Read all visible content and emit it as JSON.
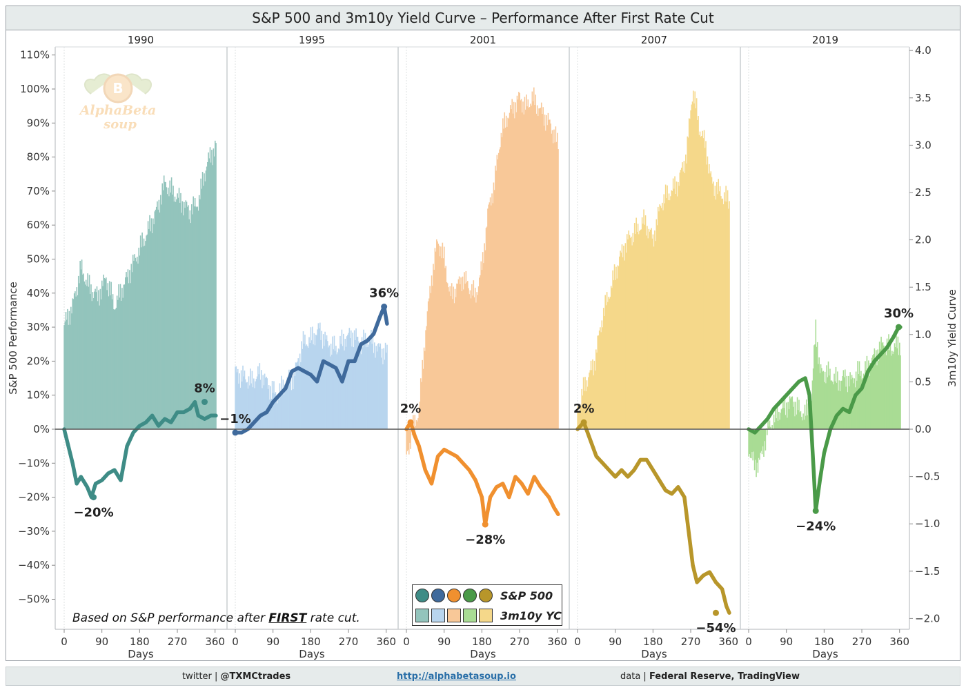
{
  "title": "S&P 500 and 3m10y Yield Curve – Performance After First Rate Cut",
  "footer": {
    "twitter_prefix": "twitter |",
    "twitter_handle": "@TXMCtrades",
    "url": "http://alphabetasoup.io",
    "data_prefix": "data |",
    "data_source": "Federal Reserve, TradingView"
  },
  "note": {
    "before": "Based on S&P performance after ",
    "emph": "FIRST",
    "after": " rate cut."
  },
  "legend": {
    "sp_label": "S&P 500",
    "yc_label": "3m10y YC"
  },
  "logo_text": "AlphaBeta soup",
  "chart_data": {
    "type": "line",
    "left_axis": {
      "label": "S&P 500 Performance",
      "ticks": [
        "110%",
        "100%",
        "90%",
        "80%",
        "70%",
        "60%",
        "50%",
        "40%",
        "30%",
        "20%",
        "10%",
        "0%",
        "−10%",
        "−20%",
        "−30%",
        "−40%",
        "−50%"
      ],
      "range": [
        -0.59,
        1.115
      ]
    },
    "right_axis": {
      "label": "3m10y Yield Curve",
      "ticks": [
        "4.0",
        "3.5",
        "3.0",
        "2.5",
        "2.0",
        "1.5",
        "1.0",
        "0.5",
        "0.0",
        "−0.5",
        "−1.0",
        "−1.5",
        "−2.0"
      ],
      "range": [
        -2.1,
        3.95
      ]
    },
    "x_axis": {
      "label": "Days",
      "ticks": [
        "0",
        "90",
        "180",
        "270",
        "360"
      ],
      "range": [
        0,
        372
      ]
    },
    "grid": false,
    "panels": [
      {
        "year": "1990",
        "color": "#3e8c86",
        "bar_color": "#93c4bc",
        "sp_points": [
          [
            0,
            0
          ],
          [
            10,
            -0.05
          ],
          [
            20,
            -0.1
          ],
          [
            30,
            -0.16
          ],
          [
            40,
            -0.14
          ],
          [
            55,
            -0.17
          ],
          [
            65,
            -0.2
          ],
          [
            75,
            -0.16
          ],
          [
            90,
            -0.15
          ],
          [
            105,
            -0.13
          ],
          [
            120,
            -0.12
          ],
          [
            135,
            -0.15
          ],
          [
            150,
            -0.05
          ],
          [
            165,
            -0.01
          ],
          [
            180,
            0.01
          ],
          [
            195,
            0.02
          ],
          [
            210,
            0.04
          ],
          [
            225,
            0.01
          ],
          [
            240,
            0.03
          ],
          [
            255,
            0.02
          ],
          [
            270,
            0.05
          ],
          [
            285,
            0.05
          ],
          [
            300,
            0.06
          ],
          [
            312,
            0.08
          ],
          [
            320,
            0.04
          ],
          [
            335,
            0.03
          ],
          [
            350,
            0.04
          ],
          [
            362,
            0.04
          ]
        ],
        "yc_points": [
          [
            0,
            1.1
          ],
          [
            20,
            1.3
          ],
          [
            40,
            1.7
          ],
          [
            60,
            1.5
          ],
          [
            80,
            1.4
          ],
          [
            100,
            1.6
          ],
          [
            120,
            1.3
          ],
          [
            140,
            1.5
          ],
          [
            160,
            1.7
          ],
          [
            180,
            1.9
          ],
          [
            200,
            2.1
          ],
          [
            220,
            2.3
          ],
          [
            240,
            2.6
          ],
          [
            260,
            2.5
          ],
          [
            280,
            2.4
          ],
          [
            300,
            2.3
          ],
          [
            320,
            2.4
          ],
          [
            340,
            2.8
          ],
          [
            362,
            3.0
          ]
        ],
        "labels": [
          {
            "text": "−20%",
            "day": 70,
            "value": -0.2,
            "pos": "below"
          },
          {
            "text": "8%",
            "day": 335,
            "value": 0.08,
            "pos": "above"
          }
        ]
      },
      {
        "year": "1995",
        "color": "#3f6a9c",
        "bar_color": "#b8d5ee",
        "sp_points": [
          [
            0,
            -0.01
          ],
          [
            15,
            -0.01
          ],
          [
            30,
            0.0
          ],
          [
            45,
            0.02
          ],
          [
            60,
            0.04
          ],
          [
            75,
            0.05
          ],
          [
            90,
            0.08
          ],
          [
            105,
            0.1
          ],
          [
            120,
            0.12
          ],
          [
            135,
            0.17
          ],
          [
            150,
            0.18
          ],
          [
            165,
            0.17
          ],
          [
            180,
            0.16
          ],
          [
            195,
            0.14
          ],
          [
            210,
            0.2
          ],
          [
            225,
            0.19
          ],
          [
            240,
            0.18
          ],
          [
            255,
            0.14
          ],
          [
            270,
            0.2
          ],
          [
            285,
            0.2
          ],
          [
            300,
            0.25
          ],
          [
            315,
            0.26
          ],
          [
            330,
            0.28
          ],
          [
            345,
            0.33
          ],
          [
            355,
            0.36
          ],
          [
            362,
            0.31
          ]
        ],
        "yc_points": [
          [
            0,
            0.6
          ],
          [
            20,
            0.55
          ],
          [
            40,
            0.5
          ],
          [
            60,
            0.6
          ],
          [
            80,
            0.45
          ],
          [
            100,
            0.35
          ],
          [
            120,
            0.5
          ],
          [
            140,
            0.55
          ],
          [
            160,
            0.9
          ],
          [
            180,
            0.95
          ],
          [
            200,
            1.05
          ],
          [
            220,
            0.9
          ],
          [
            240,
            0.85
          ],
          [
            260,
            0.95
          ],
          [
            280,
            1.0
          ],
          [
            300,
            0.9
          ],
          [
            320,
            0.95
          ],
          [
            340,
            0.85
          ],
          [
            362,
            0.8
          ]
        ],
        "labels": [
          {
            "text": "−1%",
            "day": 0,
            "value": -0.01,
            "pos": "above"
          },
          {
            "text": "36%",
            "day": 355,
            "value": 0.36,
            "pos": "above"
          }
        ]
      },
      {
        "year": "2001",
        "color": "#f0902f",
        "bar_color": "#f8c898",
        "sp_points": [
          [
            0,
            0.0
          ],
          [
            10,
            0.02
          ],
          [
            20,
            -0.02
          ],
          [
            30,
            -0.05
          ],
          [
            45,
            -0.12
          ],
          [
            60,
            -0.16
          ],
          [
            75,
            -0.08
          ],
          [
            90,
            -0.06
          ],
          [
            105,
            -0.07
          ],
          [
            120,
            -0.08
          ],
          [
            135,
            -0.1
          ],
          [
            150,
            -0.12
          ],
          [
            165,
            -0.15
          ],
          [
            180,
            -0.2
          ],
          [
            188,
            -0.28
          ],
          [
            200,
            -0.2
          ],
          [
            215,
            -0.17
          ],
          [
            230,
            -0.16
          ],
          [
            245,
            -0.2
          ],
          [
            260,
            -0.14
          ],
          [
            275,
            -0.16
          ],
          [
            290,
            -0.19
          ],
          [
            305,
            -0.14
          ],
          [
            320,
            -0.17
          ],
          [
            340,
            -0.2
          ],
          [
            352,
            -0.23
          ],
          [
            362,
            -0.25
          ]
        ],
        "yc_points": [
          [
            0,
            -0.3
          ],
          [
            15,
            0.0
          ],
          [
            30,
            0.2
          ],
          [
            45,
            1.0
          ],
          [
            60,
            1.6
          ],
          [
            75,
            2.0
          ],
          [
            90,
            1.8
          ],
          [
            105,
            1.4
          ],
          [
            120,
            1.5
          ],
          [
            135,
            1.6
          ],
          [
            150,
            1.5
          ],
          [
            165,
            1.4
          ],
          [
            180,
            1.7
          ],
          [
            195,
            2.3
          ],
          [
            210,
            2.6
          ],
          [
            225,
            3.1
          ],
          [
            240,
            3.3
          ],
          [
            255,
            3.4
          ],
          [
            270,
            3.5
          ],
          [
            285,
            3.4
          ],
          [
            300,
            3.5
          ],
          [
            315,
            3.4
          ],
          [
            330,
            3.3
          ],
          [
            345,
            3.2
          ],
          [
            362,
            3.0
          ]
        ],
        "labels": [
          {
            "text": "2%",
            "day": 10,
            "value": 0.02,
            "pos": "above"
          },
          {
            "text": "−28%",
            "day": 188,
            "value": -0.28,
            "pos": "below"
          }
        ]
      },
      {
        "year": "2007",
        "color": "#b8962a",
        "bar_color": "#f5d88a",
        "sp_points": [
          [
            0,
            0.0
          ],
          [
            15,
            0.02
          ],
          [
            30,
            -0.03
          ],
          [
            45,
            -0.08
          ],
          [
            60,
            -0.1
          ],
          [
            75,
            -0.12
          ],
          [
            90,
            -0.14
          ],
          [
            105,
            -0.12
          ],
          [
            120,
            -0.14
          ],
          [
            135,
            -0.12
          ],
          [
            150,
            -0.09
          ],
          [
            165,
            -0.09
          ],
          [
            180,
            -0.12
          ],
          [
            195,
            -0.15
          ],
          [
            210,
            -0.18
          ],
          [
            225,
            -0.19
          ],
          [
            240,
            -0.17
          ],
          [
            255,
            -0.2
          ],
          [
            265,
            -0.3
          ],
          [
            275,
            -0.4
          ],
          [
            285,
            -0.45
          ],
          [
            300,
            -0.43
          ],
          [
            315,
            -0.42
          ],
          [
            330,
            -0.45
          ],
          [
            345,
            -0.47
          ],
          [
            355,
            -0.52
          ],
          [
            362,
            -0.54
          ]
        ],
        "yc_points": [
          [
            0,
            0.2
          ],
          [
            20,
            0.5
          ],
          [
            40,
            0.7
          ],
          [
            60,
            1.2
          ],
          [
            80,
            1.5
          ],
          [
            100,
            1.8
          ],
          [
            120,
            2.0
          ],
          [
            140,
            2.1
          ],
          [
            160,
            2.2
          ],
          [
            180,
            2.0
          ],
          [
            200,
            2.4
          ],
          [
            220,
            2.5
          ],
          [
            240,
            2.6
          ],
          [
            260,
            2.9
          ],
          [
            275,
            3.6
          ],
          [
            290,
            3.2
          ],
          [
            305,
            3.0
          ],
          [
            320,
            2.6
          ],
          [
            340,
            2.5
          ],
          [
            362,
            2.4
          ]
        ],
        "labels": [
          {
            "text": "2%",
            "day": 15,
            "value": 0.02,
            "pos": "above"
          },
          {
            "text": "−54%",
            "day": 330,
            "value": -0.54,
            "pos": "below"
          }
        ]
      },
      {
        "year": "2019",
        "color": "#4a9a48",
        "bar_color": "#a9dc94",
        "sp_points": [
          [
            0,
            0.0
          ],
          [
            15,
            -0.01
          ],
          [
            30,
            0.01
          ],
          [
            45,
            0.03
          ],
          [
            60,
            0.06
          ],
          [
            75,
            0.08
          ],
          [
            90,
            0.1
          ],
          [
            105,
            0.12
          ],
          [
            120,
            0.14
          ],
          [
            135,
            0.15
          ],
          [
            145,
            0.1
          ],
          [
            155,
            -0.12
          ],
          [
            160,
            -0.24
          ],
          [
            170,
            -0.15
          ],
          [
            180,
            -0.07
          ],
          [
            195,
            0.0
          ],
          [
            210,
            0.04
          ],
          [
            225,
            0.06
          ],
          [
            240,
            0.05
          ],
          [
            255,
            0.1
          ],
          [
            270,
            0.12
          ],
          [
            285,
            0.17
          ],
          [
            300,
            0.2
          ],
          [
            315,
            0.22
          ],
          [
            330,
            0.24
          ],
          [
            345,
            0.27
          ],
          [
            358,
            0.3
          ],
          [
            362,
            0.3
          ]
        ],
        "yc_points": [
          [
            0,
            -0.2
          ],
          [
            15,
            -0.4
          ],
          [
            30,
            -0.3
          ],
          [
            45,
            0.0
          ],
          [
            60,
            0.1
          ],
          [
            75,
            0.2
          ],
          [
            90,
            0.25
          ],
          [
            105,
            0.3
          ],
          [
            120,
            0.2
          ],
          [
            135,
            0.15
          ],
          [
            150,
            0.3
          ],
          [
            160,
            1.1
          ],
          [
            170,
            0.6
          ],
          [
            185,
            0.6
          ],
          [
            200,
            0.55
          ],
          [
            215,
            0.5
          ],
          [
            230,
            0.55
          ],
          [
            245,
            0.5
          ],
          [
            260,
            0.6
          ],
          [
            275,
            0.6
          ],
          [
            290,
            0.7
          ],
          [
            305,
            0.8
          ],
          [
            320,
            0.9
          ],
          [
            340,
            0.85
          ],
          [
            362,
            0.9
          ]
        ],
        "labels": [
          {
            "text": "−24%",
            "day": 160,
            "value": -0.24,
            "pos": "below"
          },
          {
            "text": "30%",
            "day": 358,
            "value": 0.3,
            "pos": "above"
          }
        ]
      }
    ]
  }
}
